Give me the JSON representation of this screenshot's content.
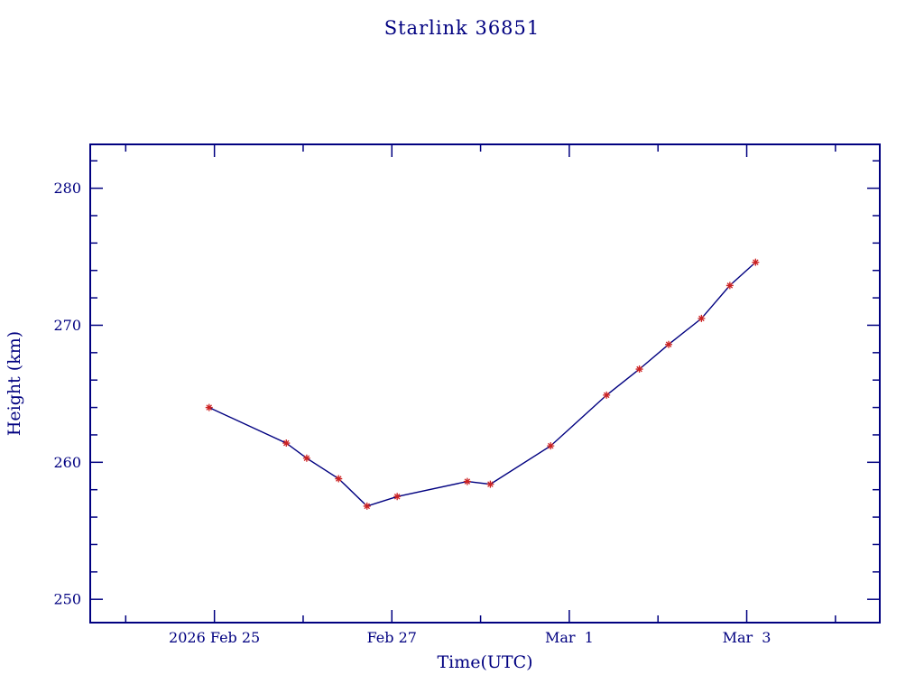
{
  "chart_data": {
    "type": "line",
    "title": "Starlink 36851",
    "xlabel": "Time(UTC)",
    "ylabel": "Height (km)",
    "axis_color": "#000080",
    "line_color": "#000080",
    "marker_color": "#cc2222",
    "marker": "asterisk",
    "grid": "off",
    "legend": "none",
    "x_unit": "days since 2026 Feb 25 00:00 UTC",
    "xlim": [
      -1.4,
      7.5
    ],
    "ylim": [
      248.3,
      283.2
    ],
    "x_ticks": [
      {
        "t": 0,
        "label": "2026 Feb 25"
      },
      {
        "t": 2,
        "label": "Feb 27"
      },
      {
        "t": 4,
        "label": "Mar  1"
      },
      {
        "t": 6,
        "label": "Mar  3"
      }
    ],
    "x_minor_ticks": [
      -1,
      1,
      3,
      5,
      7
    ],
    "y_ticks": [
      {
        "v": 250,
        "label": "250"
      },
      {
        "v": 260,
        "label": "260"
      },
      {
        "v": 270,
        "label": "270"
      },
      {
        "v": 280,
        "label": "280"
      }
    ],
    "y_minor_step": 2,
    "points": [
      {
        "t": -0.06,
        "h": 264.0
      },
      {
        "t": 0.81,
        "h": 261.4
      },
      {
        "t": 1.04,
        "h": 260.3
      },
      {
        "t": 1.4,
        "h": 258.8
      },
      {
        "t": 1.72,
        "h": 256.8
      },
      {
        "t": 2.06,
        "h": 257.5
      },
      {
        "t": 2.85,
        "h": 258.6
      },
      {
        "t": 3.11,
        "h": 258.4
      },
      {
        "t": 3.79,
        "h": 261.2
      },
      {
        "t": 4.42,
        "h": 264.9
      },
      {
        "t": 4.79,
        "h": 266.8
      },
      {
        "t": 5.12,
        "h": 268.6
      },
      {
        "t": 5.49,
        "h": 270.5
      },
      {
        "t": 5.81,
        "h": 272.9
      },
      {
        "t": 6.1,
        "h": 274.6
      }
    ]
  }
}
